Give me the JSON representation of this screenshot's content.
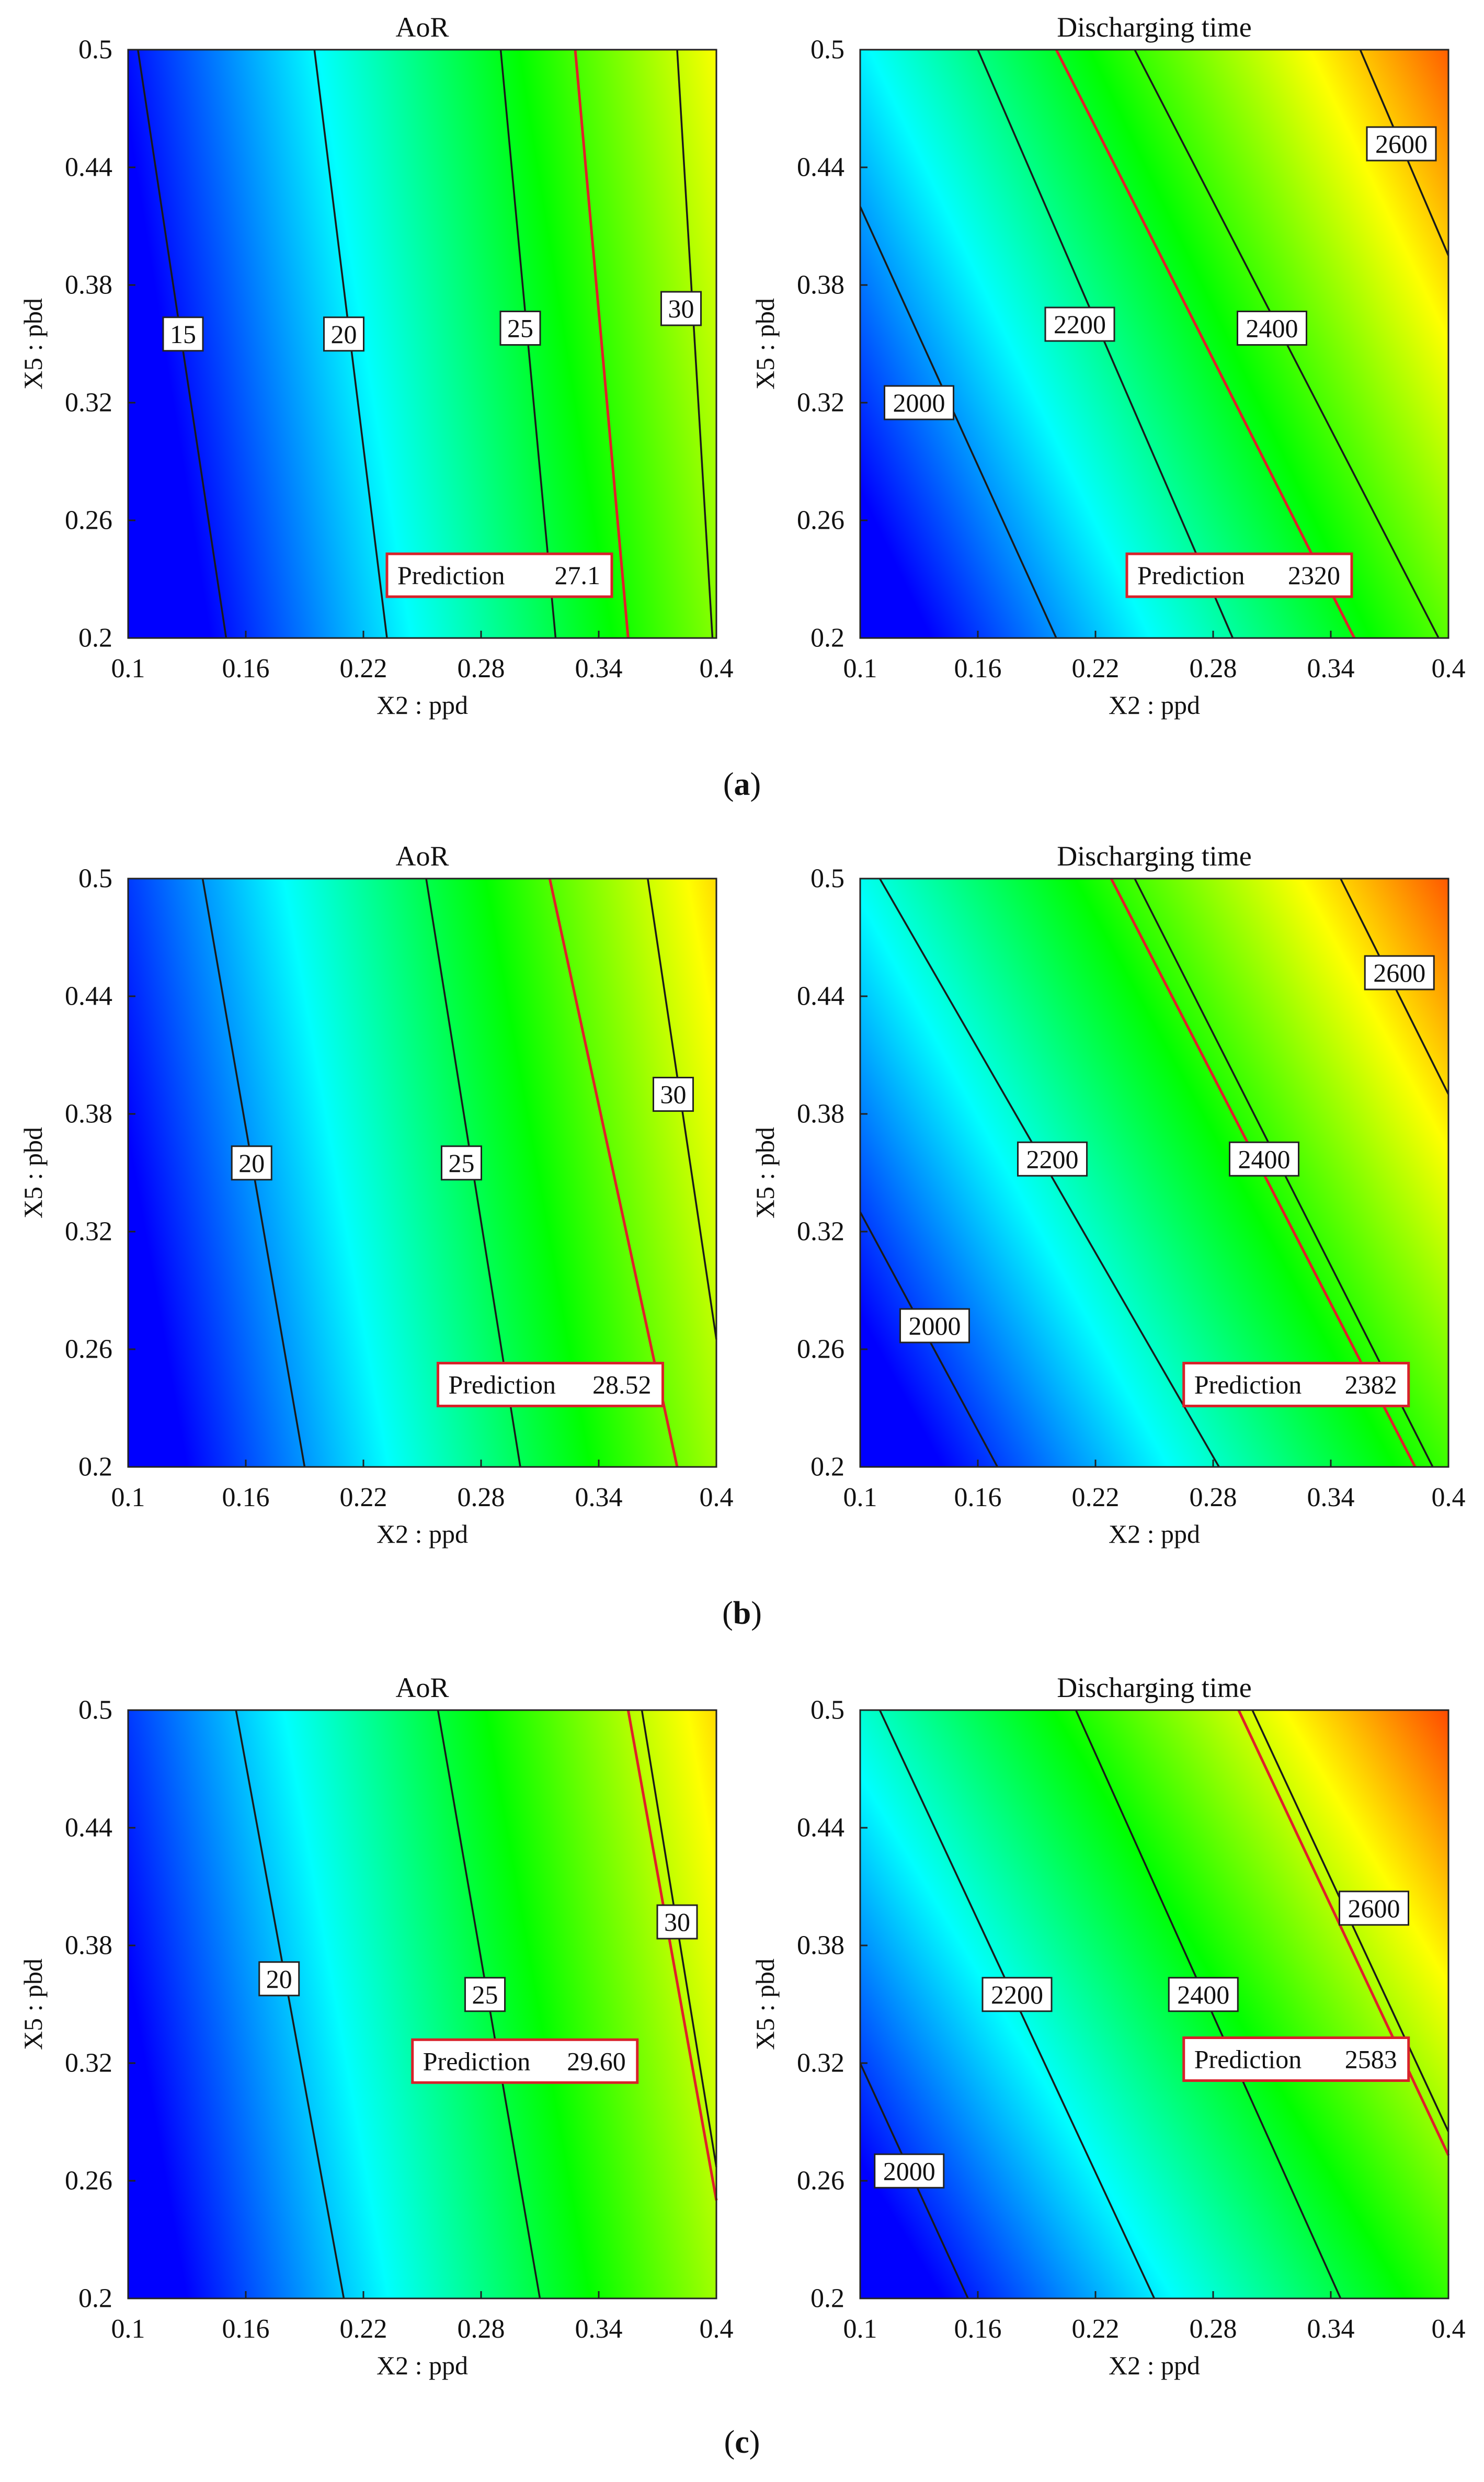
{
  "figure": {
    "panel_captions": [
      {
        "pre": "(",
        "letter": "a",
        "post": ")"
      },
      {
        "pre": "(",
        "letter": "b",
        "post": ")"
      },
      {
        "pre": "(",
        "letter": "c",
        "post": ")"
      }
    ]
  },
  "colors": {
    "contour_line": "#1a1a1a",
    "prediction_line": "#e0202a",
    "prediction_box_border": "#d8222a",
    "label_box_border": "#222222",
    "colormap": [
      "#0000ff",
      "#00ffff",
      "#00ff00",
      "#ffff00",
      "#ff0000"
    ]
  },
  "chart_data": [
    {
      "type": "contour",
      "panel": "a",
      "title": "AoR",
      "xlabel": "X2 : ppd",
      "ylabel": "X5 : pbd",
      "xlim": [
        0.1,
        0.4
      ],
      "ylim": [
        0.2,
        0.5
      ],
      "xticks": [
        "0.1",
        "0.16",
        "0.22",
        "0.28",
        "0.34",
        "0.4"
      ],
      "yticks": [
        "0.5",
        "0.44",
        "0.38",
        "0.32",
        "0.26",
        "0.2"
      ],
      "value_range": [
        11,
        34
      ],
      "color_field": {
        "a": 0.44,
        "b": 0.07,
        "c": 0.14
      },
      "contours": [
        {
          "level": "15",
          "x_top": 0.105,
          "x_bottom": 0.15,
          "label_x": 0.128,
          "label_y": 0.355
        },
        {
          "level": "20",
          "x_top": 0.195,
          "x_bottom": 0.232,
          "label_x": 0.21,
          "label_y": 0.355
        },
        {
          "level": "25",
          "x_top": 0.29,
          "x_bottom": 0.318,
          "label_x": 0.3,
          "label_y": 0.358
        },
        {
          "level": "30",
          "x_top": 0.38,
          "x_bottom": 0.398,
          "label_x": 0.382,
          "label_y": 0.368
        }
      ],
      "prediction": {
        "label": "Prediction",
        "value": "27.1",
        "x_top": 0.328,
        "x_bottom": 0.355,
        "box_x": 0.232,
        "box_y": 0.232
      }
    },
    {
      "type": "contour",
      "panel": "a",
      "title": "Discharging time",
      "xlabel": "X2 : ppd",
      "ylabel": "X5 : pbd",
      "xlim": [
        0.1,
        0.4
      ],
      "ylim": [
        0.2,
        0.5
      ],
      "xticks": [
        "0.1",
        "0.16",
        "0.22",
        "0.28",
        "0.34",
        "0.4"
      ],
      "yticks": [
        "0.5",
        "0.44",
        "0.38",
        "0.32",
        "0.26",
        "0.2"
      ],
      "value_range": [
        1850,
        2700
      ],
      "color_field": {
        "a": 0.46,
        "b": 0.22,
        "c": 0.12
      },
      "contours": [
        {
          "level": "2000",
          "x_top": 0.1,
          "y_top": 0.42,
          "x_bottom": 0.2,
          "label_x": 0.13,
          "label_y": 0.32
        },
        {
          "level": "2200",
          "x_top": 0.16,
          "x_bottom": 0.29,
          "label_x": 0.212,
          "label_y": 0.36
        },
        {
          "level": "2400",
          "x_top": 0.24,
          "x_bottom": 0.395,
          "label_x": 0.31,
          "label_y": 0.358
        },
        {
          "level": "2600",
          "x_top": 0.355,
          "x_bottom": 0.4,
          "y_bottom": 0.395,
          "label_x": 0.376,
          "label_y": 0.452
        }
      ],
      "prediction": {
        "label": "Prediction",
        "value": "2320",
        "x_top": 0.2,
        "x_bottom": 0.352,
        "box_x": 0.236,
        "box_y": 0.232
      }
    },
    {
      "type": "contour",
      "panel": "b",
      "title": "AoR",
      "xlabel": "X2 : ppd",
      "ylabel": "X5 : pbd",
      "xlim": [
        0.1,
        0.4
      ],
      "ylim": [
        0.2,
        0.5
      ],
      "xticks": [
        "0.1",
        "0.16",
        "0.22",
        "0.28",
        "0.34",
        "0.4"
      ],
      "yticks": [
        "0.5",
        "0.44",
        "0.38",
        "0.32",
        "0.26",
        "0.2"
      ],
      "value_range": [
        15,
        33
      ],
      "color_field": {
        "a": 0.45,
        "b": 0.08,
        "c": 0.1
      },
      "contours": [
        {
          "level": "20",
          "x_top": 0.138,
          "x_bottom": 0.19,
          "label_x": 0.163,
          "label_y": 0.355
        },
        {
          "level": "25",
          "x_top": 0.252,
          "x_bottom": 0.3,
          "label_x": 0.27,
          "label_y": 0.355
        },
        {
          "level": "30",
          "x_top": 0.365,
          "x_bottom": 0.4,
          "y_bottom": 0.265,
          "label_x": 0.378,
          "label_y": 0.39
        }
      ],
      "prediction": {
        "label": "Prediction",
        "value": "28.52",
        "x_top": 0.315,
        "x_bottom": 0.38,
        "box_x": 0.258,
        "box_y": 0.242
      }
    },
    {
      "type": "contour",
      "panel": "b",
      "title": "Discharging time",
      "xlabel": "X2 : ppd",
      "ylabel": "X5 : pbd",
      "xlim": [
        0.1,
        0.4
      ],
      "ylim": [
        0.2,
        0.5
      ],
      "xticks": [
        "0.1",
        "0.16",
        "0.22",
        "0.28",
        "0.34",
        "0.4"
      ],
      "yticks": [
        "0.5",
        "0.44",
        "0.38",
        "0.32",
        "0.26",
        "0.2"
      ],
      "value_range": [
        1850,
        2700
      ],
      "color_field": {
        "a": 0.46,
        "b": 0.25,
        "c": 0.14
      },
      "contours": [
        {
          "level": "2000",
          "x_top": 0.1,
          "y_top": 0.33,
          "x_bottom": 0.17,
          "label_x": 0.138,
          "label_y": 0.272
        },
        {
          "level": "2200",
          "x_top": 0.11,
          "x_bottom": 0.283,
          "label_x": 0.198,
          "label_y": 0.357
        },
        {
          "level": "2400",
          "x_top": 0.24,
          "x_bottom": 0.392,
          "label_x": 0.306,
          "label_y": 0.357
        },
        {
          "level": "2600",
          "x_top": 0.345,
          "x_bottom": 0.4,
          "y_bottom": 0.39,
          "label_x": 0.375,
          "label_y": 0.452
        }
      ],
      "prediction": {
        "label": "Prediction",
        "value": "2382",
        "x_top": 0.228,
        "x_bottom": 0.383,
        "box_x": 0.265,
        "box_y": 0.242
      }
    },
    {
      "type": "contour",
      "panel": "c",
      "title": "AoR",
      "xlabel": "X2 : ppd",
      "ylabel": "X5 : pbd",
      "xlim": [
        0.1,
        0.4
      ],
      "ylim": [
        0.2,
        0.5
      ],
      "xticks": [
        "0.1",
        "0.16",
        "0.22",
        "0.28",
        "0.34",
        "0.4"
      ],
      "yticks": [
        "0.5",
        "0.44",
        "0.38",
        "0.32",
        "0.26",
        "0.2"
      ],
      "value_range": [
        15,
        33
      ],
      "color_field": {
        "a": 0.45,
        "b": 0.08,
        "c": 0.1
      },
      "contours": [
        {
          "level": "20",
          "x_top": 0.155,
          "x_bottom": 0.21,
          "label_x": 0.177,
          "label_y": 0.363
        },
        {
          "level": "25",
          "x_top": 0.258,
          "x_bottom": 0.31,
          "label_x": 0.282,
          "label_y": 0.355
        },
        {
          "level": "30",
          "x_top": 0.362,
          "x_bottom": 0.4,
          "y_bottom": 0.267,
          "label_x": 0.38,
          "label_y": 0.392
        }
      ],
      "prediction": {
        "label": "Prediction",
        "value": "29.60",
        "x_top": 0.355,
        "x_bottom": 0.4,
        "y_bottom": 0.25,
        "box_x": 0.245,
        "box_y": 0.321
      }
    },
    {
      "type": "contour",
      "panel": "c",
      "title": "Discharging time",
      "xlabel": "X2 : ppd",
      "ylabel": "X5 : pbd",
      "xlim": [
        0.1,
        0.4
      ],
      "ylim": [
        0.2,
        0.5
      ],
      "xticks": [
        "0.1",
        "0.16",
        "0.22",
        "0.28",
        "0.34",
        "0.4"
      ],
      "yticks": [
        "0.5",
        "0.44",
        "0.38",
        "0.32",
        "0.26",
        "0.2"
      ],
      "value_range": [
        1850,
        2700
      ],
      "color_field": {
        "a": 0.45,
        "b": 0.27,
        "c": 0.14
      },
      "contours": [
        {
          "level": "2000",
          "x_top": 0.1,
          "y_top": 0.32,
          "x_bottom": 0.155,
          "label_x": 0.125,
          "label_y": 0.265
        },
        {
          "level": "2200",
          "x_top": 0.11,
          "x_bottom": 0.25,
          "label_x": 0.18,
          "label_y": 0.355
        },
        {
          "level": "2400",
          "x_top": 0.21,
          "x_bottom": 0.345,
          "label_x": 0.275,
          "label_y": 0.355
        },
        {
          "level": "2600",
          "x_top": 0.3,
          "x_bottom": 0.4,
          "y_bottom": 0.285,
          "label_x": 0.362,
          "label_y": 0.399
        }
      ],
      "prediction": {
        "label": "Prediction",
        "value": "2583",
        "x_top": 0.293,
        "x_bottom": 0.4,
        "y_bottom": 0.273,
        "box_x": 0.265,
        "box_y": 0.322
      }
    }
  ]
}
